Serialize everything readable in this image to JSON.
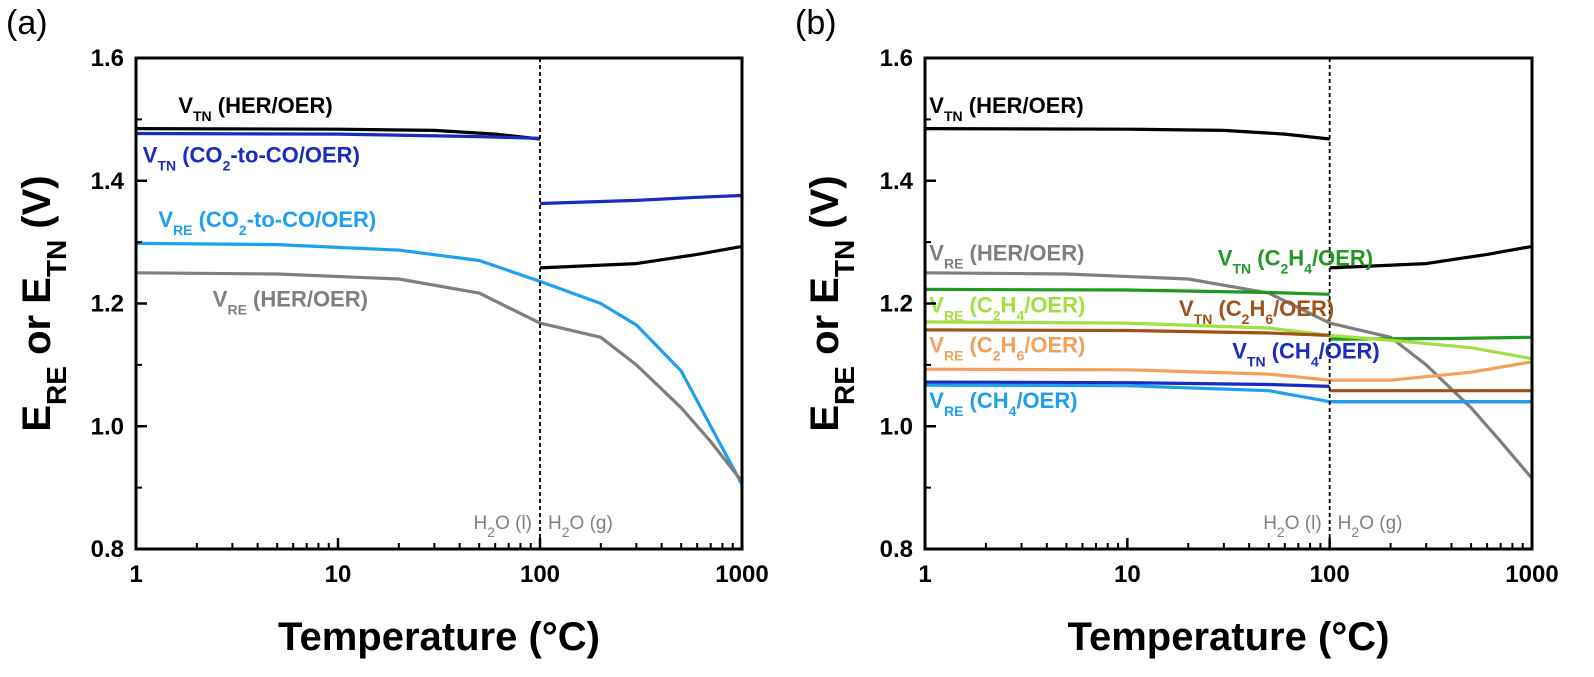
{
  "chart_data": [
    {
      "panel": "(a)",
      "type": "line",
      "xlabel": "Temperature (°C)",
      "ylabel": {
        "parts": [
          [
            "E",
            ""
          ],
          [
            "RE",
            "sub"
          ],
          [
            " or E",
            ""
          ],
          [
            "TN",
            "sub"
          ],
          [
            " (V)",
            ""
          ]
        ]
      },
      "x_scale": "log",
      "xlim": [
        1,
        1000
      ],
      "ylim": [
        0.8,
        1.6
      ],
      "x_ticks": [
        1,
        10,
        100,
        1000
      ],
      "x_tick_labels": [
        "1",
        "10",
        "100",
        "1000"
      ],
      "y_ticks": [
        0.8,
        1.0,
        1.2,
        1.4,
        1.6
      ],
      "y_tick_labels": [
        "0.8",
        "1.0",
        "1.2",
        "1.4",
        "1.6"
      ],
      "phase_boundary_x": 100,
      "phase_labels": {
        "left": [
          [
            "H",
            ""
          ],
          [
            "2",
            "sub"
          ],
          [
            "O (l)",
            ""
          ]
        ],
        "right": [
          [
            "H",
            ""
          ],
          [
            "2",
            "sub"
          ],
          [
            "O (g)",
            ""
          ]
        ]
      },
      "series": [
        {
          "color": "#000000",
          "segments": [
            [
              [
                1,
                1.485
              ],
              [
                10,
                1.484
              ],
              [
                30,
                1.482
              ],
              [
                60,
                1.476
              ],
              [
                100,
                1.468
              ]
            ],
            [
              [
                100,
                1.258
              ],
              [
                300,
                1.265
              ],
              [
                600,
                1.28
              ],
              [
                1000,
                1.293
              ]
            ]
          ],
          "label": {
            "parts": [
              [
                "V",
                ""
              ],
              [
                "TN",
                "sub"
              ],
              [
                " (HER/OER)",
                ""
              ]
            ],
            "at": [
              1.62,
              1.51
            ]
          }
        },
        {
          "color": "#1a2bc0",
          "segments": [
            [
              [
                1,
                1.477
              ],
              [
                10,
                1.476
              ],
              [
                50,
                1.472
              ],
              [
                100,
                1.469
              ]
            ],
            [
              [
                100,
                1.363
              ],
              [
                300,
                1.368
              ],
              [
                600,
                1.373
              ],
              [
                1000,
                1.376
              ]
            ]
          ],
          "label": {
            "parts": [
              [
                "V",
                ""
              ],
              [
                "TN",
                "sub"
              ],
              [
                " (CO",
                ""
              ],
              [
                "2",
                "sub"
              ],
              [
                "-to-CO/OER)",
                ""
              ]
            ],
            "at": [
              1.08,
              1.43
            ]
          }
        },
        {
          "color": "#1ea0f0",
          "segments": [
            [
              [
                1,
                1.298
              ],
              [
                5,
                1.296
              ],
              [
                20,
                1.287
              ],
              [
                50,
                1.27
              ],
              [
                100,
                1.236
              ],
              [
                200,
                1.2
              ],
              [
                300,
                1.165
              ],
              [
                500,
                1.09
              ],
              [
                700,
                1.0
              ],
              [
                1000,
                0.905
              ]
            ]
          ],
          "label": {
            "parts": [
              [
                "V",
                ""
              ],
              [
                "RE",
                "sub"
              ],
              [
                " (CO",
                ""
              ],
              [
                "2",
                "sub"
              ],
              [
                "-to-CO/OER)",
                ""
              ]
            ],
            "at": [
              1.29,
              1.325
            ]
          }
        },
        {
          "color": "#7f7f7f",
          "segments": [
            [
              [
                1,
                1.25
              ],
              [
                5,
                1.248
              ],
              [
                20,
                1.24
              ],
              [
                50,
                1.217
              ],
              [
                100,
                1.168
              ],
              [
                200,
                1.145
              ],
              [
                300,
                1.1
              ],
              [
                500,
                1.03
              ],
              [
                700,
                0.975
              ],
              [
                1000,
                0.91
              ]
            ]
          ],
          "label": {
            "parts": [
              [
                "V",
                ""
              ],
              [
                "RE",
                "sub"
              ],
              [
                " (HER/OER)",
                ""
              ]
            ],
            "at": [
              2.4,
              1.195
            ]
          }
        }
      ]
    },
    {
      "panel": "(b)",
      "type": "line",
      "xlabel": "Temperature (°C)",
      "ylabel": {
        "parts": [
          [
            "E",
            ""
          ],
          [
            "RE",
            "sub"
          ],
          [
            " or E",
            ""
          ],
          [
            "TN",
            "sub"
          ],
          [
            " (V)",
            ""
          ]
        ]
      },
      "x_scale": "log",
      "xlim": [
        1,
        1000
      ],
      "ylim": [
        0.8,
        1.6
      ],
      "x_ticks": [
        1,
        10,
        100,
        1000
      ],
      "x_tick_labels": [
        "1",
        "10",
        "100",
        "1000"
      ],
      "y_ticks": [
        0.8,
        1.0,
        1.2,
        1.4,
        1.6
      ],
      "y_tick_labels": [
        "0.8",
        "1.0",
        "1.2",
        "1.4",
        "1.6"
      ],
      "phase_boundary_x": 100,
      "phase_labels": {
        "left": [
          [
            "H",
            ""
          ],
          [
            "2",
            "sub"
          ],
          [
            "O (l)",
            ""
          ]
        ],
        "right": [
          [
            "H",
            ""
          ],
          [
            "2",
            "sub"
          ],
          [
            "O (g)",
            ""
          ]
        ]
      },
      "series": [
        {
          "color": "#000000",
          "segments": [
            [
              [
                1,
                1.485
              ],
              [
                10,
                1.484
              ],
              [
                30,
                1.482
              ],
              [
                60,
                1.476
              ],
              [
                100,
                1.468
              ]
            ],
            [
              [
                100,
                1.258
              ],
              [
                300,
                1.265
              ],
              [
                600,
                1.28
              ],
              [
                1000,
                1.293
              ]
            ]
          ],
          "label": {
            "parts": [
              [
                "V",
                ""
              ],
              [
                "TN",
                "sub"
              ],
              [
                " (HER/OER)",
                ""
              ]
            ],
            "at": [
              1.05,
              1.51
            ]
          }
        },
        {
          "color": "#7f7f7f",
          "segments": [
            [
              [
                1,
                1.25
              ],
              [
                5,
                1.248
              ],
              [
                20,
                1.24
              ],
              [
                50,
                1.217
              ],
              [
                100,
                1.168
              ],
              [
                200,
                1.145
              ],
              [
                300,
                1.1
              ],
              [
                500,
                1.03
              ],
              [
                700,
                0.975
              ],
              [
                1000,
                0.915
              ]
            ]
          ],
          "label": {
            "parts": [
              [
                "V",
                ""
              ],
              [
                "RE",
                "sub"
              ],
              [
                " (HER/OER)",
                ""
              ]
            ],
            "at": [
              1.05,
              1.27
            ]
          }
        },
        {
          "color": "#1f9a1f",
          "segments": [
            [
              [
                1,
                1.223
              ],
              [
                10,
                1.222
              ],
              [
                50,
                1.218
              ],
              [
                100,
                1.215
              ]
            ],
            [
              [
                100,
                1.142
              ],
              [
                400,
                1.143
              ],
              [
                1000,
                1.145
              ]
            ]
          ],
          "label": {
            "parts": [
              [
                "V",
                ""
              ],
              [
                "TN",
                "sub"
              ],
              [
                " (C",
                ""
              ],
              [
                "2",
                "sub"
              ],
              [
                "H",
                ""
              ],
              [
                "4",
                "sub"
              ],
              [
                "/OER)",
                ""
              ]
            ],
            "at": [
              28,
              1.262
            ]
          }
        },
        {
          "color": "#a0e040",
          "segments": [
            [
              [
                1,
                1.17
              ],
              [
                10,
                1.168
              ],
              [
                50,
                1.16
              ],
              [
                100,
                1.148
              ],
              [
                200,
                1.14
              ],
              [
                500,
                1.128
              ],
              [
                1000,
                1.11
              ]
            ]
          ],
          "label": {
            "parts": [
              [
                "V",
                ""
              ],
              [
                "RE",
                "sub"
              ],
              [
                " (C",
                ""
              ],
              [
                "2",
                "sub"
              ],
              [
                "H",
                ""
              ],
              [
                "4",
                "sub"
              ],
              [
                "/OER)",
                ""
              ]
            ],
            "at": [
              1.05,
              1.185
            ]
          }
        },
        {
          "color": "#a0521a",
          "segments": [
            [
              [
                1,
                1.157
              ],
              [
                10,
                1.156
              ],
              [
                50,
                1.152
              ],
              [
                100,
                1.148
              ]
            ],
            [
              [
                100,
                1.058
              ],
              [
                400,
                1.058
              ],
              [
                1000,
                1.058
              ]
            ]
          ],
          "label": {
            "parts": [
              [
                "V",
                ""
              ],
              [
                "TN",
                "sub"
              ],
              [
                " (C",
                ""
              ],
              [
                "2",
                "sub"
              ],
              [
                "H",
                ""
              ],
              [
                "6",
                "sub"
              ],
              [
                "/OER)",
                ""
              ]
            ],
            "at": [
              18,
              1.18
            ]
          }
        },
        {
          "color": "#f5a05a",
          "segments": [
            [
              [
                1,
                1.093
              ],
              [
                10,
                1.092
              ],
              [
                50,
                1.085
              ],
              [
                100,
                1.075
              ],
              [
                200,
                1.075
              ],
              [
                500,
                1.088
              ],
              [
                1000,
                1.105
              ]
            ]
          ],
          "label": {
            "parts": [
              [
                "V",
                ""
              ],
              [
                "RE",
                "sub"
              ],
              [
                " (C",
                ""
              ],
              [
                "2",
                "sub"
              ],
              [
                "H",
                ""
              ],
              [
                "6",
                "sub"
              ],
              [
                "/OER)",
                ""
              ]
            ],
            "at": [
              1.05,
              1.12
            ]
          }
        },
        {
          "color": "#1a2bc0",
          "segments": [
            [
              [
                1,
                1.072
              ],
              [
                10,
                1.071
              ],
              [
                50,
                1.068
              ],
              [
                100,
                1.065
              ]
            ],
            [
              [
                100,
                1.04
              ],
              [
                400,
                1.04
              ],
              [
                1000,
                1.04
              ]
            ]
          ],
          "label": {
            "parts": [
              [
                "V",
                ""
              ],
              [
                "TN",
                "sub"
              ],
              [
                " (CH",
                ""
              ],
              [
                "4",
                "sub"
              ],
              [
                "/OER)",
                ""
              ]
            ],
            "at": [
              33,
              1.11
            ]
          }
        },
        {
          "color": "#1ea0f0",
          "segments": [
            [
              [
                1,
                1.067
              ],
              [
                10,
                1.066
              ],
              [
                50,
                1.058
              ],
              [
                100,
                1.04
              ],
              [
                1000,
                1.04
              ]
            ]
          ],
          "label": {
            "parts": [
              [
                "V",
                ""
              ],
              [
                "RE",
                "sub"
              ],
              [
                " (CH",
                ""
              ],
              [
                "4",
                "sub"
              ],
              [
                "/OER)",
                ""
              ]
            ],
            "at": [
              1.05,
              1.03
            ]
          }
        }
      ]
    }
  ]
}
